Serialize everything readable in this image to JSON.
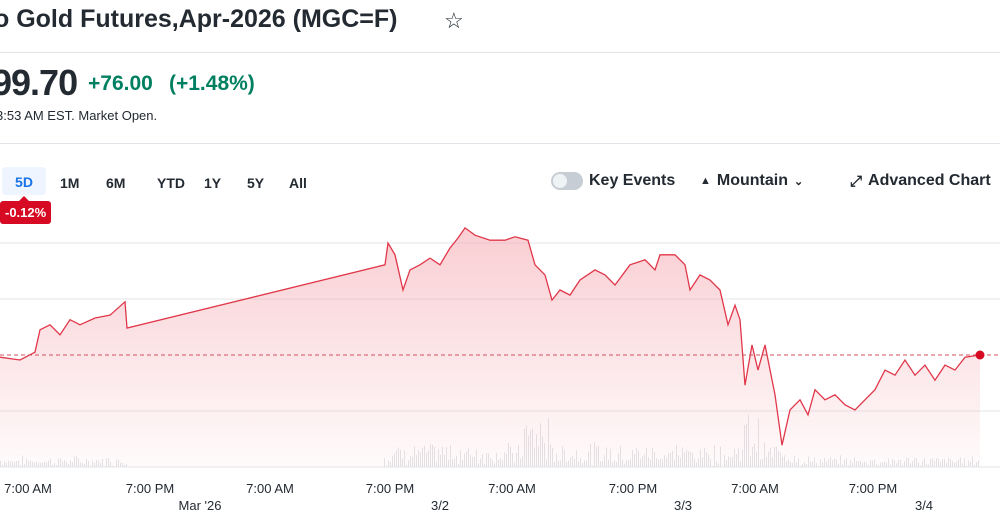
{
  "header": {
    "title": "o Gold Futures,Apr-2026 (MGC=F)",
    "star_icon": "star-outline-icon"
  },
  "quote": {
    "price": "99.70",
    "change": "+76.00",
    "change_pct": "(+1.48%)",
    "status": "3:53 AM EST. Market Open.",
    "change_color": "#008060"
  },
  "ranges": [
    "5D",
    "1M",
    "6M",
    "YTD",
    "1Y",
    "5Y",
    "All"
  ],
  "active_range": "5D",
  "range_change": "-0.12%",
  "toolbar": {
    "key_events": "Key Events",
    "key_events_on": false,
    "chart_type": "Mountain",
    "advanced": "Advanced Chart"
  },
  "chart_data": {
    "type": "area",
    "line_color": "#e0374a",
    "x_ticks": [
      "7:00 AM",
      "7:00 PM",
      "7:00 AM",
      "7:00 PM",
      "7:00 AM",
      "7:00 PM",
      "7:00 AM",
      "7:00 PM"
    ],
    "date_labels": [
      "Mar '26",
      "3/2",
      "3/3",
      "3/4"
    ],
    "grid": true,
    "previous_close_line": true,
    "values": [
      1.96,
      1.91,
      2.05,
      2.45,
      2.54,
      2.36,
      2.63,
      2.54,
      2.66,
      2.71,
      2.95,
      2.48,
      3.61,
      4.0,
      3.79,
      3.16,
      3.52,
      3.61,
      3.73,
      3.61,
      3.91,
      4.09,
      4.27,
      4.14,
      4.05,
      4.05,
      4.11,
      4.05,
      3.61,
      3.43,
      2.98,
      3.16,
      3.07,
      3.34,
      3.52,
      3.43,
      3.25,
      3.61,
      3.7,
      3.52,
      3.79,
      3.79,
      3.61,
      3.16,
      3.43,
      3.34,
      3.16,
      2.54,
      2.89,
      2.63,
      1.46,
      2.18,
      1.73,
      2.18,
      1.29,
      0.39,
      1.02,
      1.2,
      0.93,
      1.38,
      1.2,
      1.29,
      1.11,
      1.02,
      1.2,
      1.38,
      1.73,
      1.64,
      1.91,
      1.64,
      1.82,
      1.55,
      1.82,
      1.73,
      1.96,
      2.0
    ],
    "previous_close": 2.0,
    "ylim": [
      0,
      4.3
    ]
  }
}
